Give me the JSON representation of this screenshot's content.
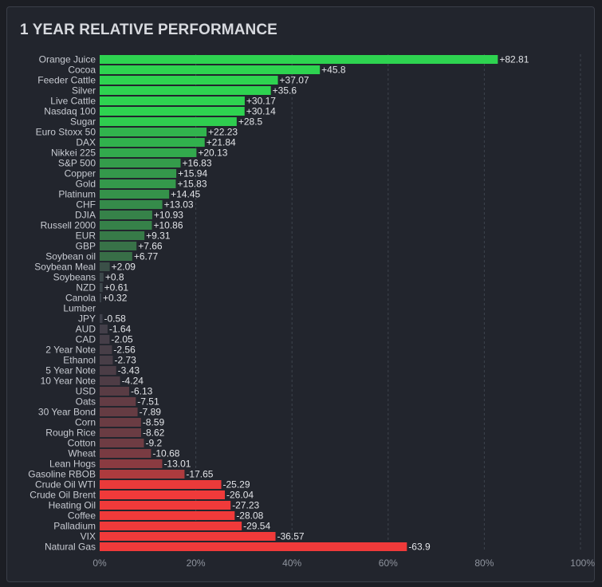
{
  "panel": {
    "title": "1 YEAR RELATIVE PERFORMANCE"
  },
  "chart_data": {
    "type": "bar",
    "orientation": "horizontal",
    "title": "1 YEAR RELATIVE PERFORMANCE",
    "categories": [
      "Orange Juice",
      "Cocoa",
      "Feeder Cattle",
      "Silver",
      "Live Cattle",
      "Nasdaq 100",
      "Sugar",
      "Euro Stoxx 50",
      "DAX",
      "Nikkei 225",
      "S&P 500",
      "Copper",
      "Gold",
      "Platinum",
      "CHF",
      "DJIA",
      "Russell 2000",
      "EUR",
      "GBP",
      "Soybean oil",
      "Soybean Meal",
      "Soybeans",
      "NZD",
      "Canola",
      "Lumber",
      "JPY",
      "AUD",
      "CAD",
      "2 Year Note",
      "Ethanol",
      "5 Year Note",
      "10 Year Note",
      "USD",
      "Oats",
      "30 Year Bond",
      "Corn",
      "Rough Rice",
      "Cotton",
      "Wheat",
      "Lean Hogs",
      "Gasoline RBOB",
      "Crude Oil WTI",
      "Crude Oil Brent",
      "Heating Oil",
      "Coffee",
      "Palladium",
      "VIX",
      "Natural Gas"
    ],
    "values": [
      82.81,
      45.8,
      37.07,
      35.6,
      30.17,
      30.14,
      28.5,
      22.23,
      21.84,
      20.13,
      16.83,
      15.94,
      15.83,
      14.45,
      13.03,
      10.93,
      10.86,
      9.31,
      7.66,
      6.77,
      2.09,
      0.8,
      0.61,
      0.32,
      null,
      -0.58,
      -1.64,
      -2.05,
      -2.56,
      -2.73,
      -3.43,
      -4.24,
      -6.13,
      -7.51,
      -7.89,
      -8.59,
      -8.62,
      -9.2,
      -10.68,
      -13.01,
      -17.65,
      -25.29,
      -26.04,
      -27.23,
      -28.08,
      -29.54,
      -36.57,
      -63.9
    ],
    "value_labels": [
      "+82.81",
      "+45.8",
      "+37.07",
      "+35.6",
      "+30.17",
      "+30.14",
      "+28.5",
      "+22.23",
      "+21.84",
      "+20.13",
      "+16.83",
      "+15.94",
      "+15.83",
      "+14.45",
      "+13.03",
      "+10.93",
      "+10.86",
      "+9.31",
      "+7.66",
      "+6.77",
      "+2.09",
      "+0.8",
      "+0.61",
      "+0.32",
      "",
      "-0.58",
      "-1.64",
      "-2.05",
      "-2.56",
      "-2.73",
      "-3.43",
      "-4.24",
      "-6.13",
      "-7.51",
      "-7.89",
      "-8.59",
      "-8.62",
      "-9.2",
      "-10.68",
      "-13.01",
      "-17.65",
      "-25.29",
      "-26.04",
      "-27.23",
      "-28.08",
      "-29.54",
      "-36.57",
      "-63.9"
    ],
    "xlim": [
      0,
      100
    ],
    "x_ticks": [
      "0%",
      "20%",
      "40%",
      "60%",
      "80%",
      "100%"
    ],
    "x_tick_values": [
      0,
      20,
      40,
      60,
      80,
      100
    ],
    "bar_length": "absolute value",
    "grid": "vertical dashed",
    "colors": {
      "pos_strong": "#2ed350",
      "pos_weak": "#3a5e46",
      "neutral": "#3c414b",
      "neg_weak": "#4d3c45",
      "neg_strong": "#f03a3a"
    }
  }
}
